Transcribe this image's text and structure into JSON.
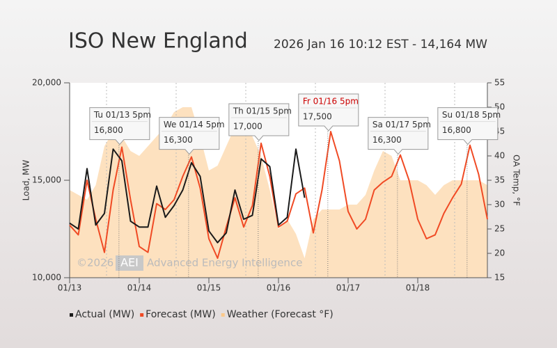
{
  "chart_data": {
    "type": "line",
    "title": "ISO New England",
    "subtitle": "2026 Jan 16 10:12 EST - 14,164 MW",
    "ylabel": "Load, MW",
    "y2label": "OA Temp, °F",
    "categories": [
      "01/13",
      null,
      null,
      null,
      null,
      null,
      null,
      null,
      "01/14",
      null,
      null,
      null,
      null,
      null,
      null,
      null,
      "01/15",
      null,
      null,
      null,
      null,
      null,
      null,
      null,
      "01/16",
      null,
      null,
      null,
      null,
      null,
      null,
      null,
      "01/17",
      null,
      null,
      null,
      null,
      null,
      null,
      null,
      "01/18",
      null,
      null,
      null,
      null,
      null,
      null,
      null,
      null
    ],
    "ylim": [
      10000,
      20000
    ],
    "yticks": [
      {
        "value": 10000,
        "label": "10,000"
      },
      {
        "value": 15000,
        "label": "15,000"
      },
      {
        "value": 20000,
        "label": "20,000"
      }
    ],
    "y2lim": [
      15,
      55
    ],
    "y2ticks": [
      15,
      20,
      25,
      30,
      35,
      40,
      45,
      50,
      55
    ],
    "series": [
      {
        "name": "Weather (Forecast °F)",
        "color": "#fbc98a",
        "axis": "y2",
        "kind": "area",
        "values": [
          33,
          32,
          31,
          34,
          42,
          45,
          44,
          41,
          40,
          42,
          44,
          46,
          49,
          50,
          50,
          44,
          37,
          38,
          42,
          46,
          48,
          44,
          40,
          33,
          25,
          27,
          24,
          19,
          27,
          29,
          29,
          29,
          30,
          30,
          32,
          37,
          41,
          40,
          35,
          35,
          35,
          34,
          32,
          34,
          35,
          35,
          35,
          35,
          34
        ]
      },
      {
        "name": "Forecast (MW)",
        "color": "#f04a24",
        "values": [
          12700,
          12200,
          15000,
          13000,
          11300,
          14500,
          16700,
          14000,
          11600,
          11300,
          13800,
          13500,
          14000,
          15200,
          16200,
          14600,
          12000,
          11000,
          12600,
          14100,
          12600,
          13700,
          16900,
          15200,
          12600,
          12900,
          14300,
          14600,
          12300,
          14500,
          17500,
          16000,
          13400,
          12500,
          13000,
          14500,
          14900,
          15200,
          16300,
          15000,
          13000,
          12000,
          12200,
          13300,
          14100,
          14800,
          16800,
          15300,
          13000
        ]
      },
      {
        "name": "Actual (MW)",
        "color": "#1a1a1a",
        "values": [
          12800,
          12500,
          15600,
          12700,
          13300,
          16600,
          16000,
          12900,
          12600,
          12600,
          14700,
          13100,
          13700,
          14500,
          15900,
          15200,
          12400,
          11800,
          12300,
          14500,
          13000,
          13200,
          16100,
          15700,
          12700,
          13100,
          16600,
          14100,
          null,
          null,
          null,
          null,
          null,
          null,
          null,
          null,
          null,
          null,
          null,
          null,
          null,
          null,
          null,
          null,
          null,
          null,
          null,
          null,
          null
        ]
      }
    ],
    "legend_order": [
      2,
      1,
      0
    ],
    "annotations": [
      {
        "text": "Tu 01/13 5pm",
        "value": 16800,
        "value_label": "16,800",
        "color": "#333333"
      },
      {
        "text": "We 01/14 5pm",
        "value": 16300,
        "value_label": "16,300",
        "color": "#333333"
      },
      {
        "text": "Th 01/15 5pm",
        "value": 17000,
        "value_label": "17,000",
        "color": "#333333"
      },
      {
        "text": "Fr 01/16 5pm",
        "value": 17500,
        "value_label": "17,500",
        "color": "#cc0000"
      },
      {
        "text": "Sa 01/17 5pm",
        "value": 16300,
        "value_label": "16,300",
        "color": "#333333"
      },
      {
        "text": "Su 01/18 5pm",
        "value": 16800,
        "value_label": "16,800",
        "color": "#333333"
      }
    ],
    "watermark": {
      "prefix": "©2026",
      "logo": "AEI",
      "text": "Advanced Energy Intelligence"
    }
  }
}
